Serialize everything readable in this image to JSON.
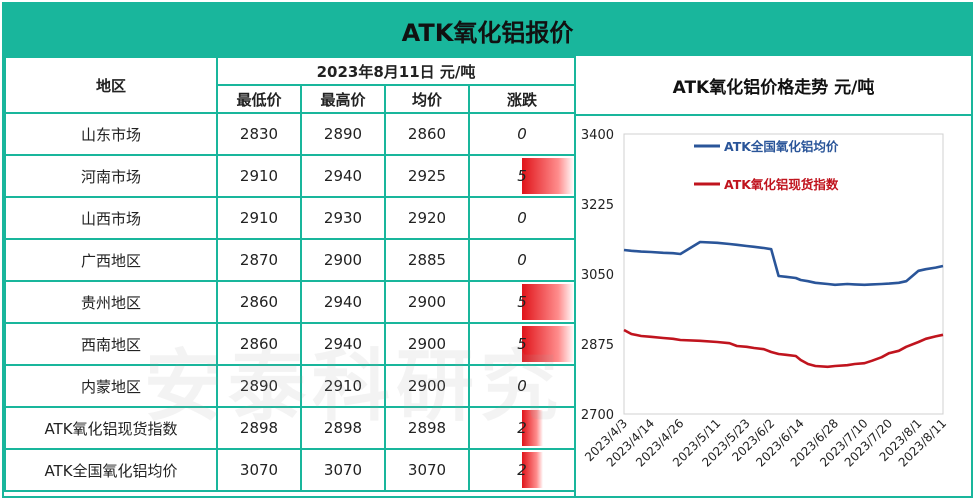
{
  "title": "ATK氧化铝报价",
  "table": {
    "region_header": "地区",
    "date_header": "2023年8月11日  元/吨",
    "col_headers": [
      "最低价",
      "最高价",
      "均价",
      "涨跌"
    ],
    "rows": [
      {
        "region": "山东市场",
        "low": "2830",
        "high": "2890",
        "avg": "2860",
        "change": "0",
        "change_value": 0
      },
      {
        "region": "河南市场",
        "low": "2910",
        "high": "2940",
        "avg": "2925",
        "change": "5",
        "change_value": 5
      },
      {
        "region": "山西市场",
        "low": "2910",
        "high": "2930",
        "avg": "2920",
        "change": "0",
        "change_value": 0
      },
      {
        "region": "广西地区",
        "low": "2870",
        "high": "2900",
        "avg": "2885",
        "change": "0",
        "change_value": 0
      },
      {
        "region": "贵州地区",
        "low": "2860",
        "high": "2940",
        "avg": "2900",
        "change": "5",
        "change_value": 5
      },
      {
        "region": "西南地区",
        "low": "2860",
        "high": "2940",
        "avg": "2900",
        "change": "5",
        "change_value": 5
      },
      {
        "region": "内蒙地区",
        "low": "2890",
        "high": "2910",
        "avg": "2900",
        "change": "0",
        "change_value": 0
      },
      {
        "region": "ATK氧化铝现货指数",
        "low": "2898",
        "high": "2898",
        "avg": "2898",
        "change": "2",
        "change_value": 2
      },
      {
        "region": "ATK全国氧化铝均价",
        "low": "3070",
        "high": "3070",
        "avg": "3070",
        "change": "2",
        "change_value": 2
      }
    ]
  },
  "chart_title": "ATK氧化铝价格走势  元/吨",
  "watermark": "安泰科研究",
  "colors": {
    "accent": "#19b69c",
    "series_avg": "#2a5599",
    "series_index": "#c0141e",
    "bar": "#e0141a"
  },
  "chart_data": {
    "type": "line",
    "title": "ATK氧化铝价格走势  元/吨",
    "ylim": [
      2700,
      3400
    ],
    "yticks": [
      2700,
      2875,
      3050,
      3225,
      3400
    ],
    "xticks": [
      "2023/4/3",
      "2023/4/14",
      "2023/4/26",
      "2023/5/11",
      "2023/5/23",
      "2023/6/2",
      "2023/6/14",
      "2023/6/28",
      "2023/7/10",
      "2023/7/20",
      "2023/8/1",
      "2023/8/11"
    ],
    "legend_position": "top-left",
    "grid": false,
    "x": [
      "2023/4/3",
      "2023/4/6",
      "2023/4/10",
      "2023/4/14",
      "2023/4/19",
      "2023/4/23",
      "2023/4/26",
      "2023/5/4",
      "2023/5/11",
      "2023/5/16",
      "2023/5/19",
      "2023/5/23",
      "2023/5/26",
      "2023/5/30",
      "2023/6/2",
      "2023/6/5",
      "2023/6/8",
      "2023/6/12",
      "2023/6/14",
      "2023/6/17",
      "2023/6/20",
      "2023/6/25",
      "2023/6/28",
      "2023/7/3",
      "2023/7/6",
      "2023/7/10",
      "2023/7/13",
      "2023/7/17",
      "2023/7/20",
      "2023/7/24",
      "2023/7/27",
      "2023/8/1",
      "2023/8/4",
      "2023/8/8",
      "2023/8/11"
    ],
    "series": [
      {
        "name": "ATK全国氧化铝均价",
        "values": [
          3110,
          3108,
          3106,
          3105,
          3103,
          3102,
          3100,
          3130,
          3128,
          3125,
          3123,
          3120,
          3118,
          3115,
          3112,
          3045,
          3043,
          3040,
          3035,
          3032,
          3028,
          3025,
          3023,
          3025,
          3024,
          3023,
          3024,
          3025,
          3026,
          3028,
          3032,
          3058,
          3062,
          3066,
          3070
        ]
      },
      {
        "name": "ATK氧化铝现货指数",
        "values": [
          2910,
          2900,
          2895,
          2893,
          2890,
          2888,
          2885,
          2883,
          2880,
          2877,
          2870,
          2868,
          2865,
          2862,
          2855,
          2850,
          2848,
          2845,
          2835,
          2825,
          2820,
          2818,
          2820,
          2822,
          2825,
          2827,
          2833,
          2842,
          2852,
          2858,
          2868,
          2880,
          2888,
          2894,
          2898
        ]
      }
    ]
  }
}
